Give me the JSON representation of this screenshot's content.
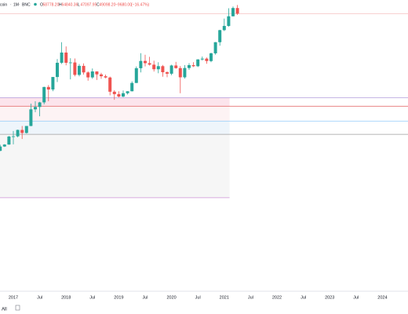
{
  "chart_data": {
    "type": "candlestick",
    "symbol": "coin",
    "separator": "·",
    "interval": "1M",
    "exchange": "BNC",
    "ohlc_prefixes": [
      "O",
      "H",
      "L",
      "C"
    ],
    "last_labels": {
      "open": "58778.20",
      "high": "64840.36",
      "low": "47097.95",
      "close": "49098.20",
      "change": "−9680.00",
      "change_pct": "(−16.47%)"
    },
    "range_button": "All",
    "log_scale": true,
    "ylim": [
      7,
      76000
    ],
    "up_color": "#26a69a",
    "down_color": "#ef5350",
    "x": [
      "2016-10",
      "2016-11",
      "2016-12",
      "2017-01",
      "2017-02",
      "2017-03",
      "2017-04",
      "2017-05",
      "2017-06",
      "2017-07",
      "2017-08",
      "2017-09",
      "2017-10",
      "2017-11",
      "2017-12",
      "2018-01",
      "2018-02",
      "2018-03",
      "2018-04",
      "2018-05",
      "2018-06",
      "2018-07",
      "2018-08",
      "2018-09",
      "2018-10",
      "2018-11",
      "2018-12",
      "2019-01",
      "2019-02",
      "2019-03",
      "2019-04",
      "2019-05",
      "2019-06",
      "2019-07",
      "2019-08",
      "2019-09",
      "2019-10",
      "2019-11",
      "2019-12",
      "2020-01",
      "2020-02",
      "2020-03",
      "2020-04",
      "2020-05",
      "2020-06",
      "2020-07",
      "2020-08",
      "2020-09",
      "2020-10",
      "2020-11",
      "2020-12",
      "2021-01",
      "2021-02",
      "2021-03",
      "2021-04"
    ],
    "open": [
      609,
      700,
      745,
      964,
      970,
      1190,
      1080,
      1350,
      2300,
      2480,
      2870,
      4700,
      4340,
      6470,
      10200,
      14150,
      10200,
      10300,
      6930,
      9240,
      7490,
      6390,
      7730,
      7030,
      6630,
      6370,
      4040,
      3740,
      3460,
      3850,
      4100,
      5350,
      8570,
      10820,
      10080,
      9600,
      8290,
      9150,
      7540,
      7190,
      9350,
      8600,
      6410,
      8630,
      9450,
      9140,
      11350,
      11650,
      10780,
      13800,
      19700,
      28990,
      33140,
      45140,
      58778.2
    ],
    "high": [
      740,
      755,
      980,
      1150,
      1200,
      1350,
      1350,
      2760,
      2980,
      2920,
      4740,
      5000,
      6470,
      11500,
      19700,
      17200,
      11800,
      11700,
      9800,
      9990,
      7760,
      8500,
      7760,
      7400,
      7000,
      6550,
      4240,
      4100,
      4200,
      4100,
      5640,
      9070,
      13880,
      13200,
      12330,
      10900,
      10370,
      9520,
      7750,
      9580,
      10500,
      9190,
      9470,
      10070,
      10380,
      11440,
      12470,
      12070,
      14100,
      19800,
      29300,
      41950,
      58350,
      61780,
      64840.36
    ],
    "low": [
      605,
      690,
      740,
      750,
      940,
      890,
      1060,
      1340,
      2100,
      1840,
      2700,
      2980,
      4110,
      5500,
      9800,
      9400,
      6000,
      6600,
      6600,
      7000,
      5750,
      6100,
      5880,
      6100,
      6200,
      3600,
      3120,
      3360,
      3390,
      3700,
      4080,
      5330,
      7500,
      9070,
      9320,
      7710,
      7300,
      6520,
      6430,
      6860,
      8450,
      3850,
      6150,
      8120,
      8900,
      8900,
      10950,
      9880,
      10370,
      13220,
      17600,
      28130,
      32380,
      44980,
      47097.95
    ],
    "close": [
      700,
      745,
      964,
      970,
      1190,
      1080,
      1350,
      2300,
      2480,
      2870,
      4700,
      4340,
      6470,
      10200,
      14150,
      10200,
      10300,
      6930,
      9240,
      7490,
      6390,
      7730,
      7030,
      6630,
      6370,
      4040,
      3740,
      3460,
      3850,
      4100,
      5350,
      8570,
      10820,
      10080,
      9600,
      8290,
      9150,
      7540,
      7190,
      9350,
      8600,
      6410,
      8630,
      9450,
      9140,
      11350,
      11650,
      10780,
      13800,
      19700,
      28990,
      33140,
      45140,
      58778.2,
      49098.2
    ],
    "xticks": [
      {
        "value": "2017-01",
        "label": "2017"
      },
      {
        "value": "2017-07",
        "label": "Jul"
      },
      {
        "value": "2018-01",
        "label": "2018"
      },
      {
        "value": "2018-07",
        "label": "Jul"
      },
      {
        "value": "2019-01",
        "label": "2019"
      },
      {
        "value": "2019-07",
        "label": "Jul"
      },
      {
        "value": "2020-01",
        "label": "2020"
      },
      {
        "value": "2020-07",
        "label": "Jul"
      },
      {
        "value": "2021-01",
        "label": "2021"
      },
      {
        "value": "2021-07",
        "label": "Jul"
      },
      {
        "value": "2022-01",
        "label": "2022"
      },
      {
        "value": "2022-07",
        "label": "Jul"
      },
      {
        "value": "2023-01",
        "label": "2023"
      },
      {
        "value": "2023-07",
        "label": "Jul"
      },
      {
        "value": "2024-01",
        "label": "2024"
      }
    ],
    "zones": [
      {
        "from": 3345,
        "to": 2540,
        "color": "#fce4ec"
      },
      {
        "from": 2540,
        "to": 1580,
        "color": "#fdf3f4"
      },
      {
        "from": 1580,
        "to": 1033,
        "color": "#eef5fb"
      },
      {
        "from": 1033,
        "to": 136,
        "color": "#f6f6f6"
      }
    ],
    "levels": [
      {
        "value": 3345,
        "color": "#b39ddb",
        "full_width": true
      },
      {
        "value": 2540,
        "color": "#e57373",
        "full_width": true
      },
      {
        "value": 1580,
        "color": "#90caf9",
        "full_width": true
      },
      {
        "value": 1033,
        "color": "#9e9e9e",
        "full_width": true
      },
      {
        "value": 136,
        "color": "#ce93d8",
        "full_width": false
      }
    ]
  }
}
